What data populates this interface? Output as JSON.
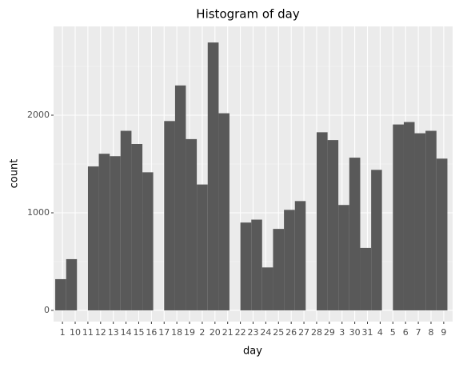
{
  "chart_data": {
    "type": "histogram",
    "title": "Histogram of day",
    "xlabel": "day",
    "ylabel": "count",
    "bins": [
      0.43,
      1.29,
      2.14,
      3.0,
      3.86,
      4.72,
      5.57,
      6.43,
      7.29,
      8.14,
      9.0,
      9.86,
      10.71,
      11.57,
      12.43,
      13.29,
      14.14,
      15.0,
      15.86,
      16.71,
      17.57,
      18.43,
      19.29,
      20.14,
      21.0,
      21.86,
      22.71,
      23.57,
      24.43,
      25.29,
      26.14,
      27.0,
      27.86,
      28.71,
      29.57,
      30.43,
      31.29
    ],
    "values": [
      320,
      525,
      0,
      1475,
      1605,
      1580,
      1840,
      1705,
      1415,
      0,
      1940,
      2305,
      1755,
      1290,
      2745,
      2020,
      0,
      900,
      930,
      440,
      835,
      1030,
      1120,
      0,
      1825,
      1745,
      1080,
      1565,
      640,
      1440,
      0,
      1905,
      1930,
      1815,
      1840,
      1555
    ],
    "color": "#595959",
    "xlim": [
      0.3,
      31.7
    ],
    "xticks": [
      {
        "value": 1,
        "label": "1"
      },
      {
        "value": 2,
        "label": "10"
      },
      {
        "value": 3,
        "label": "11"
      },
      {
        "value": 4,
        "label": "12"
      },
      {
        "value": 5,
        "label": "13"
      },
      {
        "value": 6,
        "label": "14"
      },
      {
        "value": 7,
        "label": "15"
      },
      {
        "value": 8,
        "label": "16"
      },
      {
        "value": 9,
        "label": "17"
      },
      {
        "value": 10,
        "label": "18"
      },
      {
        "value": 11,
        "label": "19"
      },
      {
        "value": 12,
        "label": "2"
      },
      {
        "value": 13,
        "label": "20"
      },
      {
        "value": 14,
        "label": "21"
      },
      {
        "value": 15,
        "label": "22"
      },
      {
        "value": 16,
        "label": "23"
      },
      {
        "value": 17,
        "label": "24"
      },
      {
        "value": 18,
        "label": "25"
      },
      {
        "value": 19,
        "label": "26"
      },
      {
        "value": 20,
        "label": "27"
      },
      {
        "value": 21,
        "label": "28"
      },
      {
        "value": 22,
        "label": "29"
      },
      {
        "value": 23,
        "label": "3"
      },
      {
        "value": 24,
        "label": "30"
      },
      {
        "value": 25,
        "label": "31"
      },
      {
        "value": 26,
        "label": "4"
      },
      {
        "value": 27,
        "label": "5"
      },
      {
        "value": 28,
        "label": "6"
      },
      {
        "value": 29,
        "label": "7"
      },
      {
        "value": 30,
        "label": "8"
      },
      {
        "value": 31,
        "label": "9"
      }
    ],
    "ylim": [
      -115,
      2910
    ],
    "yticks": [
      0,
      1000,
      2000
    ],
    "grid": true
  }
}
